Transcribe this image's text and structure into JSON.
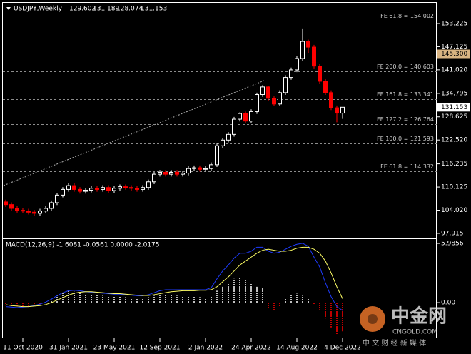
{
  "chart_data": [
    {
      "type": "candlestick",
      "title": "USDJPY,Weekly",
      "categories": [
        null,
        null,
        null,
        "11 Oct 2020",
        null,
        null,
        null,
        null,
        null,
        null,
        null,
        "31 Jan 2021",
        null,
        null,
        null,
        null,
        null,
        null,
        null,
        "23 May 2021",
        null,
        null,
        null,
        null,
        null,
        null,
        null,
        "12 Sep 2021",
        null,
        null,
        null,
        null,
        null,
        null,
        null,
        "2 Jan 2022",
        null,
        null,
        null,
        null,
        null,
        null,
        null,
        "24 Apr 2022",
        null,
        null,
        null,
        null,
        null,
        null,
        null,
        "14 Aug 2022",
        null,
        null,
        null,
        null,
        null,
        null,
        null,
        "4 Dec 2022"
      ],
      "open": [
        106.2,
        105.5,
        104.5,
        104,
        103.8,
        103.5,
        103.2,
        103.8,
        104.5,
        106,
        108,
        109.5,
        110.5,
        109.5,
        109,
        109.3,
        109.8,
        109.5,
        110,
        109.2,
        109.8,
        110.2,
        110,
        109.8,
        109.5,
        110,
        111.5,
        113.5,
        114,
        113.5,
        114,
        113.5,
        113.8,
        115,
        115.2,
        114.8,
        115,
        116,
        121,
        122.5,
        124,
        128,
        129.5,
        127.5,
        130,
        134.5,
        136.5,
        133.5,
        132,
        135,
        139,
        141,
        144,
        148.5,
        147,
        142,
        138,
        135,
        131,
        129.602
      ],
      "high": [
        106.8,
        106.1,
        105.1,
        104.6,
        104.4,
        104.1,
        104.4,
        105.1,
        106.6,
        108.6,
        110.1,
        111.1,
        111.1,
        110.1,
        109.9,
        110.4,
        110.4,
        110.6,
        110.6,
        110.4,
        110.8,
        110.8,
        110.6,
        110.4,
        110.6,
        112.1,
        114.1,
        114.6,
        114.6,
        114.6,
        114.6,
        114.4,
        115.6,
        115.8,
        115.8,
        115.6,
        116.6,
        121.6,
        123.1,
        124.6,
        128.6,
        129.8,
        130,
        130.6,
        135,
        137,
        136.7,
        134,
        135.6,
        139.6,
        141.6,
        144.6,
        151.94,
        149,
        147.6,
        142.6,
        138.6,
        135.6,
        131.6,
        131.189
      ],
      "low": [
        104.9,
        103.9,
        103.4,
        103.2,
        102.9,
        102.6,
        102.6,
        103.2,
        103.9,
        105.4,
        107.4,
        108.9,
        108.9,
        108.4,
        108.4,
        108.7,
        108.9,
        108.9,
        108.6,
        108.6,
        109.2,
        109.4,
        109.2,
        108.9,
        108.9,
        109.4,
        110.9,
        112.9,
        112.9,
        112.9,
        112.9,
        112.9,
        113.2,
        114.4,
        114.2,
        114.2,
        114.4,
        115.4,
        120.4,
        121.9,
        123.4,
        127.4,
        126.9,
        126.9,
        129.4,
        133.9,
        132.9,
        131.4,
        131.4,
        134.4,
        138.4,
        140.4,
        143.4,
        145.5,
        141.4,
        137.4,
        134.4,
        130.4,
        127.2,
        128.074
      ],
      "close": [
        105.5,
        104.5,
        104,
        103.8,
        103.5,
        103.2,
        103.8,
        104.5,
        106,
        108,
        109.5,
        110.5,
        109.5,
        109,
        109.3,
        109.8,
        109.5,
        110,
        109.2,
        109.8,
        110.2,
        110,
        109.8,
        109.5,
        110,
        111.5,
        113.5,
        114,
        113.5,
        114,
        113.5,
        113.8,
        115,
        115.2,
        114.8,
        115,
        116,
        121,
        122.5,
        124,
        128,
        129.5,
        127.5,
        130,
        134.5,
        136.5,
        133.5,
        132,
        135,
        139,
        141,
        144,
        148.5,
        147,
        142,
        138,
        135,
        131,
        129.602,
        131.153
      ],
      "up_color": "#ffffff",
      "down_color": "#ff0000",
      "ylim": [
        96.97,
        158.49
      ],
      "yticks": [
        153.225,
        147.125,
        {
          "value": 141.02,
          "label": "141.020"
        },
        134.795,
        128.625,
        {
          "value": 122.52,
          "label": "122.520"
        },
        116.235,
        110.125,
        {
          "value": 104.02,
          "label": "104.020"
        },
        97.915
      ],
      "levels": [
        {
          "label": "FE 61.8 = 154.002",
          "value": 154.002
        },
        {
          "label": "FE 200.0 = 140.603",
          "value": 140.603
        },
        {
          "label": "FE 161.8 = 133.341",
          "value": 133.341
        },
        {
          "label": "FE 127.2 = 126.764",
          "value": 126.764
        },
        {
          "label": "FE 100.0 = 121.593",
          "value": 121.593
        },
        {
          "label": "FE 61.8 = 114.332",
          "value": 114.332
        }
      ],
      "hline": {
        "value": 145.3,
        "label": "145.300",
        "color": "#d8b482"
      }
    },
    {
      "type": "macd",
      "title": "MACD(12,26,9) -1.6081 -0.0561 0.0000 -2.0175",
      "values": [
        -0.3,
        -0.35,
        -0.4,
        -0.4,
        -0.35,
        -0.3,
        -0.2,
        0,
        0.3,
        0.7,
        1.0,
        1.2,
        1.1,
        0.95,
        0.85,
        0.8,
        0.75,
        0.7,
        0.65,
        0.6,
        0.6,
        0.55,
        0.5,
        0.45,
        0.45,
        0.55,
        0.7,
        0.8,
        0.8,
        0.75,
        0.7,
        0.65,
        0.65,
        0.6,
        0.55,
        0.5,
        0.6,
        1.2,
        1.6,
        1.9,
        2.4,
        2.6,
        2.3,
        1.9,
        1.6,
        1.5,
        -0.6,
        -0.8,
        -0.4,
        0.5,
        0.8,
        0.9,
        0.7,
        0.4,
        -0.2,
        -0.7,
        -1.6,
        -2.5,
        -3.2,
        -2.9
      ],
      "up_color": "#ffffff",
      "down_color": "#ff0000",
      "series": [
        {
          "color": "#1e3cff",
          "values": [
            -0.4,
            -0.45,
            -0.5,
            -0.45,
            -0.4,
            -0.3,
            -0.15,
            0.05,
            0.35,
            0.7,
            1.0,
            1.2,
            1.25,
            1.2,
            1.1,
            1.05,
            1.0,
            0.95,
            0.9,
            0.85,
            0.85,
            0.8,
            0.75,
            0.7,
            0.7,
            0.8,
            1.0,
            1.2,
            1.3,
            1.3,
            1.3,
            1.3,
            1.3,
            1.3,
            1.3,
            1.3,
            1.5,
            2.4,
            3.2,
            3.8,
            4.5,
            5.0,
            5.0,
            5.2,
            5.6,
            5.6,
            5.2,
            5.0,
            5.1,
            5.4,
            5.7,
            5.9,
            6.0,
            5.7,
            4.6,
            3.6,
            2.0,
            0.6,
            -0.4,
            -0.8
          ]
        },
        {
          "color": "#ffff66",
          "values": [
            -0.2,
            -0.3,
            -0.35,
            -0.4,
            -0.4,
            -0.35,
            -0.3,
            -0.2,
            0,
            0.25,
            0.5,
            0.75,
            0.95,
            1.05,
            1.1,
            1.1,
            1.05,
            1.0,
            0.95,
            0.9,
            0.9,
            0.85,
            0.8,
            0.75,
            0.72,
            0.72,
            0.8,
            0.9,
            1.0,
            1.1,
            1.15,
            1.2,
            1.2,
            1.2,
            1.25,
            1.25,
            1.3,
            1.6,
            2.1,
            2.6,
            3.2,
            3.8,
            4.2,
            4.6,
            5.0,
            5.3,
            5.4,
            5.3,
            5.2,
            5.2,
            5.3,
            5.5,
            5.6,
            5.6,
            5.4,
            5.0,
            4.2,
            3.0,
            1.6,
            0.4
          ]
        }
      ],
      "ylim": [
        -3.46,
        6.35
      ],
      "yticks": [
        5.9856,
        {
          "value": 0,
          "label": "0.00"
        }
      ]
    }
  ],
  "watermark": {
    "brand": "中金网",
    "site": "CNGOLD.COM",
    "tagline": "中 文 财 经 新 媒 体"
  }
}
